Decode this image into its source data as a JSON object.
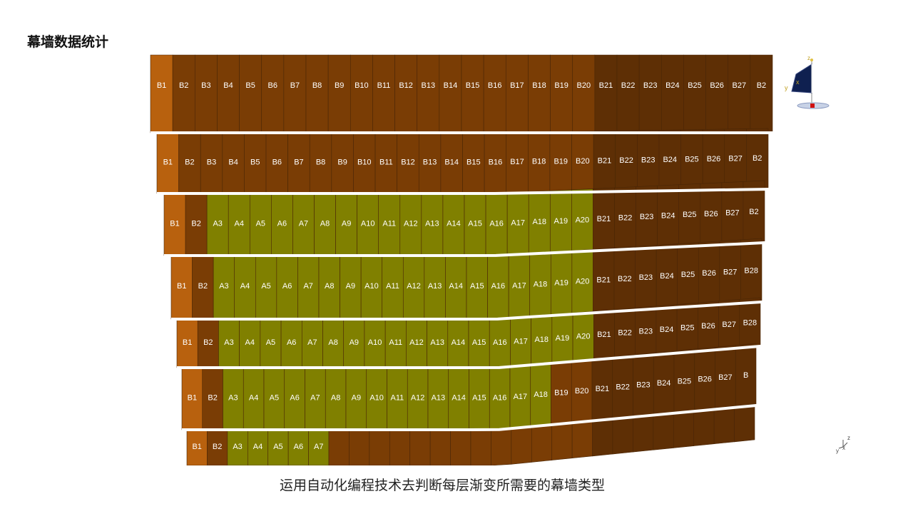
{
  "title": "幕墙数据统计",
  "caption": "运用自动化编程技术去判断每层渐变所需要的幕墙类型",
  "colors": {
    "panel_b": "#7a3d05",
    "panel_b_dark": "#5e2f05",
    "panel_b_edge": "#b8610e",
    "panel_a": "#808000",
    "separator": "#ffffff",
    "panel_divider": "#4a2606",
    "label": "#ffffff"
  },
  "axis_gizmo": {
    "x": "x",
    "y": "y",
    "z": "z"
  },
  "floors": [
    {
      "panels": [
        "B1",
        "B2",
        "B3",
        "B4",
        "B5",
        "B6",
        "B7",
        "B8",
        "B9",
        "B10",
        "B11",
        "B12",
        "B13",
        "B14",
        "B15",
        "B16",
        "B17",
        "B18",
        "B19",
        "B20",
        "B21",
        "B22",
        "B23",
        "B24",
        "B25",
        "B26",
        "B27",
        "B2"
      ]
    },
    {
      "panels": [
        "B1",
        "B2",
        "B3",
        "B4",
        "B5",
        "B6",
        "B7",
        "B8",
        "B9",
        "B10",
        "B11",
        "B12",
        "B13",
        "B14",
        "B15",
        "B16",
        "B17",
        "B18",
        "B19",
        "B20",
        "B21",
        "B22",
        "B23",
        "B24",
        "B25",
        "B26",
        "B27",
        "B2"
      ]
    },
    {
      "panels": [
        "B1",
        "B2",
        "A3",
        "A4",
        "A5",
        "A6",
        "A7",
        "A8",
        "A9",
        "A10",
        "A11",
        "A12",
        "A13",
        "A14",
        "A15",
        "A16",
        "A17",
        "A18",
        "A19",
        "A20",
        "B21",
        "B22",
        "B23",
        "B24",
        "B25",
        "B26",
        "B27",
        "B2"
      ]
    },
    {
      "panels": [
        "B1",
        "B2",
        "A3",
        "A4",
        "A5",
        "A6",
        "A7",
        "A8",
        "A9",
        "A10",
        "A11",
        "A12",
        "A13",
        "A14",
        "A15",
        "A16",
        "A17",
        "A18",
        "A19",
        "A20",
        "B21",
        "B22",
        "B23",
        "B24",
        "B25",
        "B26",
        "B27",
        "B28"
      ]
    },
    {
      "panels": [
        "B1",
        "B2",
        "A3",
        "A4",
        "A5",
        "A6",
        "A7",
        "A8",
        "A9",
        "A10",
        "A11",
        "A12",
        "A13",
        "A14",
        "A15",
        "A16",
        "A17",
        "A18",
        "A19",
        "A20",
        "B21",
        "B22",
        "B23",
        "B24",
        "B25",
        "B26",
        "B27",
        "B28"
      ]
    },
    {
      "panels": [
        "B1",
        "B2",
        "A3",
        "A4",
        "A5",
        "A6",
        "A7",
        "A8",
        "A9",
        "A10",
        "A11",
        "A12",
        "A13",
        "A14",
        "A15",
        "A16",
        "A17",
        "A18",
        "B19",
        "B20",
        "B21",
        "B22",
        "B23",
        "B24",
        "B25",
        "B26",
        "B27",
        "B"
      ]
    },
    {
      "panels": [
        "B1",
        "B2",
        "A3",
        "A4",
        "A5",
        "A6",
        "A7"
      ]
    }
  ]
}
